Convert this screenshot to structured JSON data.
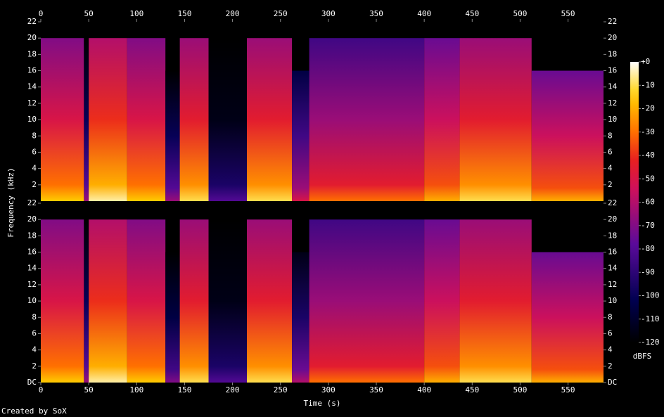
{
  "chart_data": {
    "type": "heatmap",
    "x_label": "Time (s)",
    "y_label": "Frequency (kHz)",
    "colorbar_label": "dBFS",
    "footer": "Created by SoX",
    "xlim": [
      0,
      587
    ],
    "xticks": [
      0,
      50,
      100,
      150,
      200,
      250,
      300,
      350,
      400,
      450,
      500,
      550
    ],
    "ylim": [
      0,
      22
    ],
    "yticks": [
      {
        "value": 0,
        "label": "DC"
      },
      2,
      4,
      6,
      8,
      10,
      12,
      14,
      16,
      18,
      20,
      22
    ],
    "clim": [
      -120,
      0
    ],
    "cticks": [
      {
        "value": 0,
        "label": "+0"
      },
      -10,
      -20,
      -30,
      -40,
      -50,
      -60,
      -70,
      -80,
      -90,
      -100,
      -110,
      -120
    ],
    "bins": [
      0,
      45,
      50,
      90,
      130,
      145,
      175,
      215,
      262,
      280,
      400,
      437,
      512,
      587
    ],
    "channels": [
      {
        "cutoff": [
          20,
          20,
          20,
          20,
          16,
          20,
          20,
          20,
          16,
          20,
          20,
          20,
          16
        ],
        "level": [
          -40,
          -90,
          -30,
          -40,
          -90,
          -35,
          -105,
          -35,
          -75,
          -55,
          -45,
          -35,
          -45
        ]
      },
      {
        "cutoff": [
          20,
          20,
          20,
          20,
          16,
          20,
          20,
          20,
          16,
          20,
          20,
          20,
          16
        ],
        "level": [
          -40,
          -90,
          -30,
          -40,
          -95,
          -35,
          -105,
          -35,
          -85,
          -55,
          -45,
          -35,
          -45
        ]
      }
    ]
  }
}
